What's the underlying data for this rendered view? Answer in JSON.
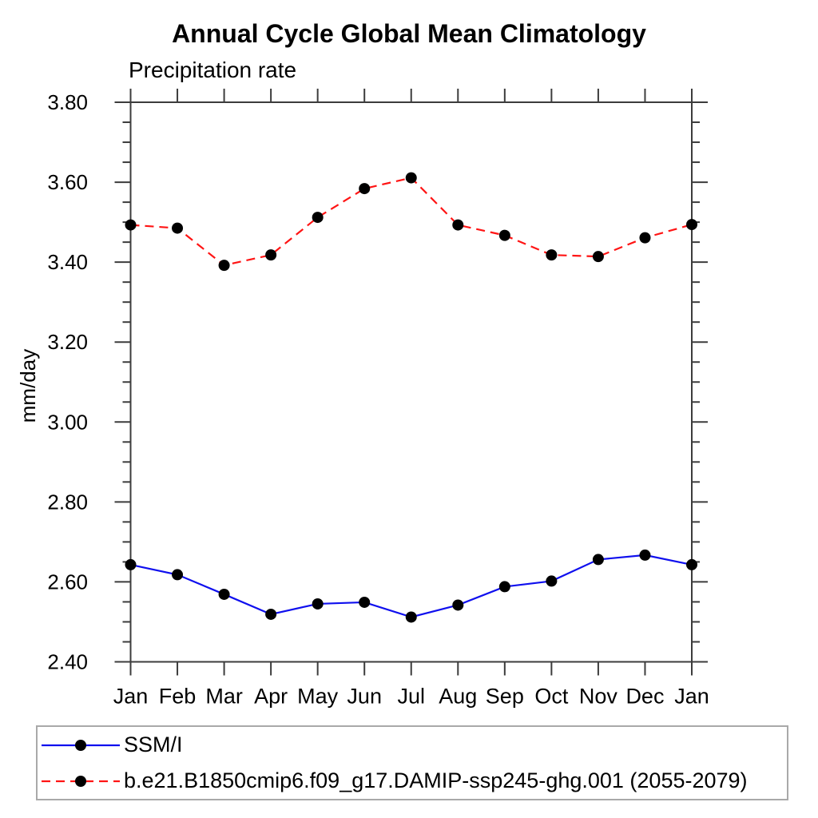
{
  "chart_data": {
    "type": "line",
    "title": "Annual Cycle Global Mean Climatology",
    "subtitle": "Precipitation rate",
    "ylabel": "mm/day",
    "ylim": [
      2.4,
      3.8
    ],
    "ytick_major": 0.2,
    "ytick_minor": 0.05,
    "ytick_label_format": "2dp",
    "grid": false,
    "legend_position": "bottom-left",
    "categories": [
      "Jan",
      "Feb",
      "Mar",
      "Apr",
      "May",
      "Jun",
      "Jul",
      "Aug",
      "Sep",
      "Oct",
      "Nov",
      "Dec",
      "Jan"
    ],
    "series": [
      {
        "name": "SSM/I",
        "color": "#0f0fee",
        "line_style": "solid",
        "marker": "filled-circle",
        "marker_color": "#000000",
        "values": [
          2.643,
          2.618,
          2.569,
          2.519,
          2.545,
          2.549,
          2.512,
          2.542,
          2.588,
          2.602,
          2.656,
          2.667,
          2.643
        ]
      },
      {
        "name": "b.e21.B1850cmip6.f09_g17.DAMIP-ssp245-ghg.001 (2055-2079)",
        "color": "#ff1414",
        "line_style": "dashed",
        "marker": "filled-circle",
        "marker_color": "#000000",
        "values": [
          3.493,
          3.485,
          3.392,
          3.418,
          3.512,
          3.584,
          3.611,
          3.493,
          3.467,
          3.418,
          3.414,
          3.461,
          3.494
        ]
      }
    ],
    "frame_color": "#3c3c3c"
  }
}
